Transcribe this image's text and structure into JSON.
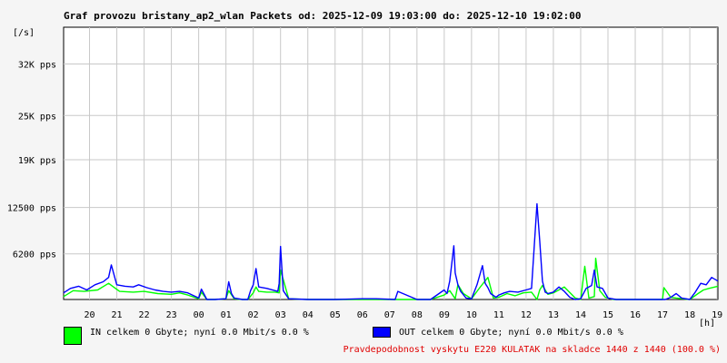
{
  "chart_data": {
    "type": "line",
    "title": "Graf provozu bristany_ap2_wlan Packets od: 2025-12-09 19:03:00 do: 2025-12-10 19:02:00",
    "ylabel": "[/s]",
    "xlabel": "[h]",
    "ylim": [
      0,
      37000
    ],
    "xlim": [
      19.05,
      43.03
    ],
    "grid": true,
    "y_ticks": [
      {
        "value": 6200,
        "label": "6200 pps"
      },
      {
        "value": 12500,
        "label": "12500 pps"
      },
      {
        "value": 19000,
        "label": "19K pps"
      },
      {
        "value": 25000,
        "label": "25K pps"
      },
      {
        "value": 32000,
        "label": "32K pps"
      }
    ],
    "x_ticks": [
      {
        "value": 20,
        "label": "20"
      },
      {
        "value": 21,
        "label": "21"
      },
      {
        "value": 22,
        "label": "22"
      },
      {
        "value": 23,
        "label": "23"
      },
      {
        "value": 24,
        "label": "00"
      },
      {
        "value": 25,
        "label": "01"
      },
      {
        "value": 26,
        "label": "02"
      },
      {
        "value": 27,
        "label": "03"
      },
      {
        "value": 28,
        "label": "04"
      },
      {
        "value": 29,
        "label": "05"
      },
      {
        "value": 30,
        "label": "06"
      },
      {
        "value": 31,
        "label": "07"
      },
      {
        "value": 32,
        "label": "08"
      },
      {
        "value": 33,
        "label": "09"
      },
      {
        "value": 34,
        "label": "10"
      },
      {
        "value": 35,
        "label": "11"
      },
      {
        "value": 36,
        "label": "12"
      },
      {
        "value": 37,
        "label": "13"
      },
      {
        "value": 38,
        "label": "14"
      },
      {
        "value": 39,
        "label": "15"
      },
      {
        "value": 40,
        "label": "16"
      },
      {
        "value": 41,
        "label": "17"
      },
      {
        "value": 42,
        "label": "18"
      },
      {
        "value": 43,
        "label": "19"
      }
    ],
    "series": [
      {
        "color": "#00ff00",
        "x": [
          19.05,
          19.4,
          19.8,
          20.3,
          20.7,
          21.1,
          21.6,
          22.0,
          22.5,
          23.0,
          23.3,
          23.6,
          24.0,
          24.1,
          24.3,
          24.6,
          25.0,
          25.1,
          25.3,
          25.6,
          25.8,
          26.0,
          26.1,
          26.2,
          26.5,
          26.8,
          26.95,
          27.0,
          27.3,
          28.0,
          30.0,
          31.2,
          32.5,
          33.0,
          33.2,
          33.4,
          33.5,
          33.7,
          34.0,
          34.3,
          34.6,
          34.8,
          35.0,
          35.3,
          35.6,
          35.9,
          36.2,
          36.4,
          36.5,
          36.6,
          36.8,
          37.0,
          37.2,
          37.4,
          37.8,
          38.0,
          38.15,
          38.3,
          38.5,
          38.55,
          38.7,
          38.9,
          39.2,
          40.5,
          41.0,
          41.05,
          41.3,
          41.5,
          42.0,
          42.3,
          42.5,
          42.7,
          43.03
        ],
        "values": [
          400,
          1200,
          1100,
          1300,
          2200,
          1100,
          1000,
          1100,
          800,
          700,
          900,
          600,
          100,
          1000,
          0,
          0,
          100,
          1200,
          100,
          0,
          0,
          900,
          1700,
          1100,
          1000,
          1000,
          900,
          4000,
          100,
          0,
          0,
          0,
          0,
          600,
          1200,
          100,
          2000,
          800,
          100,
          1600,
          3000,
          200,
          300,
          800,
          500,
          900,
          1000,
          0,
          1300,
          1900,
          700,
          900,
          1300,
          1700,
          200,
          0,
          4500,
          200,
          400,
          5600,
          1200,
          300,
          0,
          0,
          0,
          1600,
          300,
          200,
          0,
          800,
          1300,
          1500,
          1800
        ]
      },
      {
        "color": "#0000ff",
        "x": [
          19.05,
          19.3,
          19.6,
          19.9,
          20.2,
          20.5,
          20.7,
          20.8,
          21.0,
          21.3,
          21.6,
          21.8,
          22.1,
          22.4,
          22.7,
          23.0,
          23.3,
          23.6,
          24.0,
          24.1,
          24.3,
          24.6,
          25.0,
          25.1,
          25.2,
          25.3,
          25.6,
          25.8,
          25.9,
          26.0,
          26.1,
          26.2,
          26.5,
          26.8,
          26.9,
          26.95,
          27.0,
          27.1,
          27.3,
          28.0,
          29.0,
          30.0,
          30.5,
          31.2,
          31.3,
          32.0,
          32.5,
          33.0,
          33.1,
          33.2,
          33.35,
          33.4,
          33.5,
          33.6,
          33.8,
          34.0,
          34.2,
          34.4,
          34.5,
          34.6,
          34.7,
          34.9,
          35.0,
          35.2,
          35.4,
          35.7,
          36.0,
          36.2,
          36.4,
          36.5,
          36.6,
          36.7,
          36.8,
          37.0,
          37.2,
          37.4,
          37.6,
          37.8,
          38.0,
          38.2,
          38.4,
          38.5,
          38.6,
          38.8,
          39.0,
          39.3,
          40.0,
          40.5,
          41.0,
          41.1,
          41.3,
          41.5,
          41.7,
          42.0,
          42.2,
          42.4,
          42.6,
          42.8,
          43.03
        ],
        "values": [
          900,
          1500,
          1800,
          1300,
          2000,
          2400,
          3000,
          4700,
          2000,
          1800,
          1700,
          2000,
          1600,
          1300,
          1100,
          1000,
          1100,
          900,
          200,
          1400,
          0,
          0,
          100,
          2400,
          800,
          200,
          0,
          0,
          1200,
          2000,
          4200,
          1700,
          1500,
          1200,
          1100,
          2200,
          7200,
          1200,
          100,
          0,
          0,
          100,
          100,
          0,
          1100,
          0,
          0,
          1300,
          800,
          2500,
          7300,
          3600,
          2000,
          1100,
          200,
          100,
          2000,
          4600,
          2200,
          1600,
          800,
          300,
          600,
          900,
          1100,
          1000,
          1300,
          1500,
          13000,
          8000,
          2500,
          1000,
          800,
          1000,
          1700,
          1100,
          300,
          0,
          100,
          1500,
          1900,
          4000,
          1700,
          1500,
          200,
          0,
          0,
          0,
          0,
          0,
          300,
          800,
          200,
          0,
          1000,
          2200,
          2000,
          3000,
          2500
        ]
      }
    ]
  },
  "legend": {
    "in_text": "IN celkem 0 Gbyte; nyní   0.0 Mbit/s 0.0 %",
    "out_text": "OUT celkem 0 Gbyte; nyní   0.0 Mbit/s 0.0 %",
    "in_color": "#00ff00",
    "out_color": "#0000ff"
  },
  "footer": {
    "text": "Pravdepodobnost vyskytu E220 KULATAK na skladce 1440 z 1440 (100.0 %)"
  }
}
